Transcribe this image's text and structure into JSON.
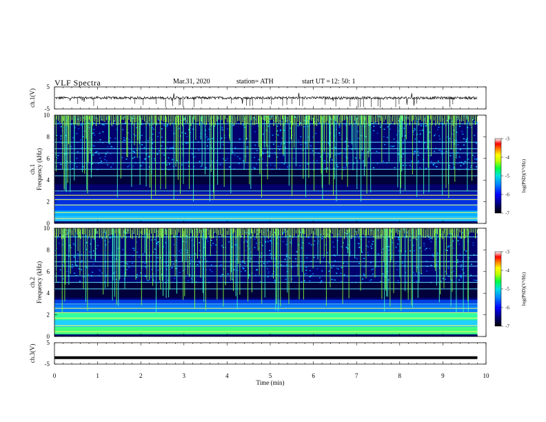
{
  "header": {
    "title": "VLF  Spectra",
    "date": "Mar.31, 2020",
    "station": "station= ATH",
    "start_label": "start  UT  =",
    "start_value": "12: 50: 1"
  },
  "chart_data": [
    {
      "type": "line",
      "panel": "ch1-waveform",
      "ylabel": "ch.1(V)",
      "ylim": [
        -5,
        5
      ],
      "yticks": [
        "5",
        "-5"
      ],
      "xlim": [
        0,
        10
      ],
      "baseline": 0,
      "color": "#000000"
    },
    {
      "type": "heatmap",
      "panel": "ch1-spectrogram",
      "ylabel": "ch.1\nFrequency  (kHz)",
      "ylabel_lines": [
        "ch.1",
        "Frequency  (kHz)"
      ],
      "ylim": [
        0,
        10
      ],
      "yticks": [
        "0",
        "2",
        "4",
        "6",
        "8",
        "10"
      ],
      "xlim": [
        0,
        10
      ],
      "data_end_min": 9.8,
      "colorbar": {
        "label": "log(PSD)(V²/Hz)",
        "range": [
          -7,
          -3
        ],
        "ticks": [
          "-3",
          "-4",
          "-5",
          "-6",
          "-7"
        ]
      }
    },
    {
      "type": "heatmap",
      "panel": "ch2-spectrogram",
      "ylabel": "ch.2\nFrequency  (kHz)",
      "ylabel_lines": [
        "ch.2",
        "Frequency  (kHz)"
      ],
      "ylim": [
        0,
        10
      ],
      "yticks": [
        "0",
        "2",
        "4",
        "6",
        "8",
        "10"
      ],
      "xlim": [
        0,
        10
      ],
      "data_end_min": 9.8,
      "colorbar": {
        "label": "log(PSD)(V²/Hz)",
        "range": [
          -7,
          -3
        ],
        "ticks": [
          "-3",
          "-4",
          "-5",
          "-6",
          "-7"
        ]
      }
    },
    {
      "type": "line",
      "panel": "ch3-waveform",
      "ylabel": "ch.3(V)",
      "ylim": [
        -5,
        5
      ],
      "yticks": [
        "5",
        "-5"
      ],
      "xlim": [
        0,
        10
      ],
      "baseline": -2,
      "color": "#000000"
    }
  ],
  "x_axis": {
    "label": "Time  (min)",
    "ticks": [
      "0",
      "1",
      "2",
      "3",
      "4",
      "5",
      "6",
      "7",
      "8",
      "9",
      "10"
    ]
  }
}
